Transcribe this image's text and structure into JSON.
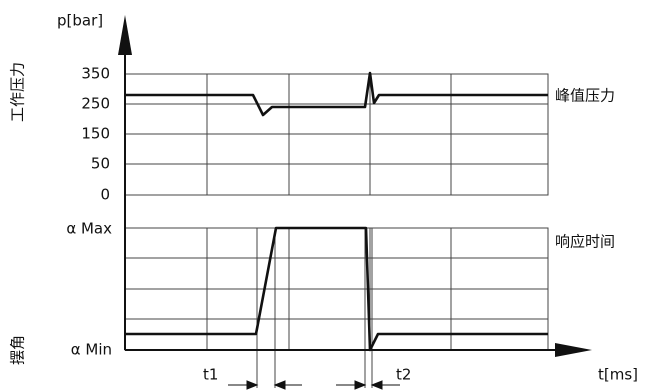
{
  "top_plot": {
    "y_axis_label": "p[bar]",
    "side_label": "工作压力",
    "ticks": [
      350,
      250,
      150,
      50,
      0
    ],
    "curve_label": "峰值压力"
  },
  "bottom_plot": {
    "side_label": "摆角",
    "tick_max": "α Max",
    "tick_min": "α Min",
    "curve_label": "响应时间"
  },
  "x_axis_label": "t[ms]",
  "markers": [
    "t1",
    "t2"
  ]
}
